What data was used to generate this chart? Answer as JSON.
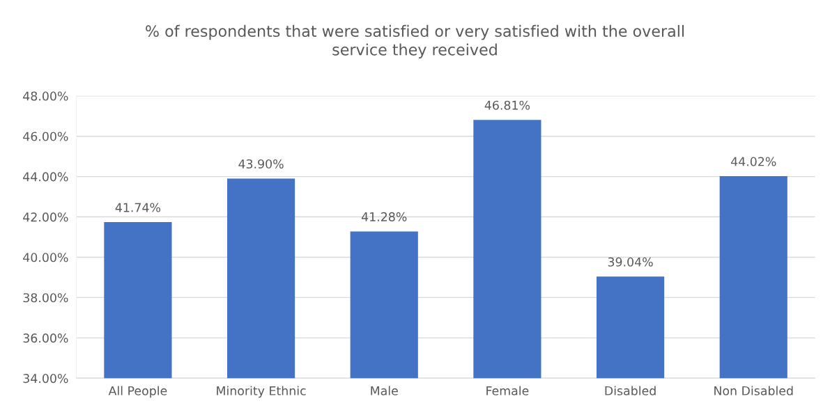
{
  "chart_data": {
    "type": "bar",
    "title": "% of respondents that were satisfied or very satisfied with the overall\nservice they received",
    "categories": [
      "All People",
      "Minority Ethnic",
      "Male",
      "Female",
      "Disabled",
      "Non Disabled"
    ],
    "values": [
      41.74,
      43.9,
      41.28,
      46.81,
      39.04,
      44.02
    ],
    "value_labels": [
      "41.74%",
      "43.90%",
      "41.28%",
      "46.81%",
      "39.04%",
      "44.02%"
    ],
    "color": "#4472c4",
    "ylim": [
      34,
      48
    ],
    "yticks": [
      {
        "value": 34,
        "label": "34.00%"
      },
      {
        "value": 36,
        "label": "36.00%"
      },
      {
        "value": 38,
        "label": "38.00%"
      },
      {
        "value": 40,
        "label": "40.00%"
      },
      {
        "value": 42,
        "label": "42.00%"
      },
      {
        "value": 44,
        "label": "44.00%"
      },
      {
        "value": 46,
        "label": "46.00%"
      },
      {
        "value": 48,
        "label": "48.00%"
      }
    ],
    "grid": "y"
  }
}
